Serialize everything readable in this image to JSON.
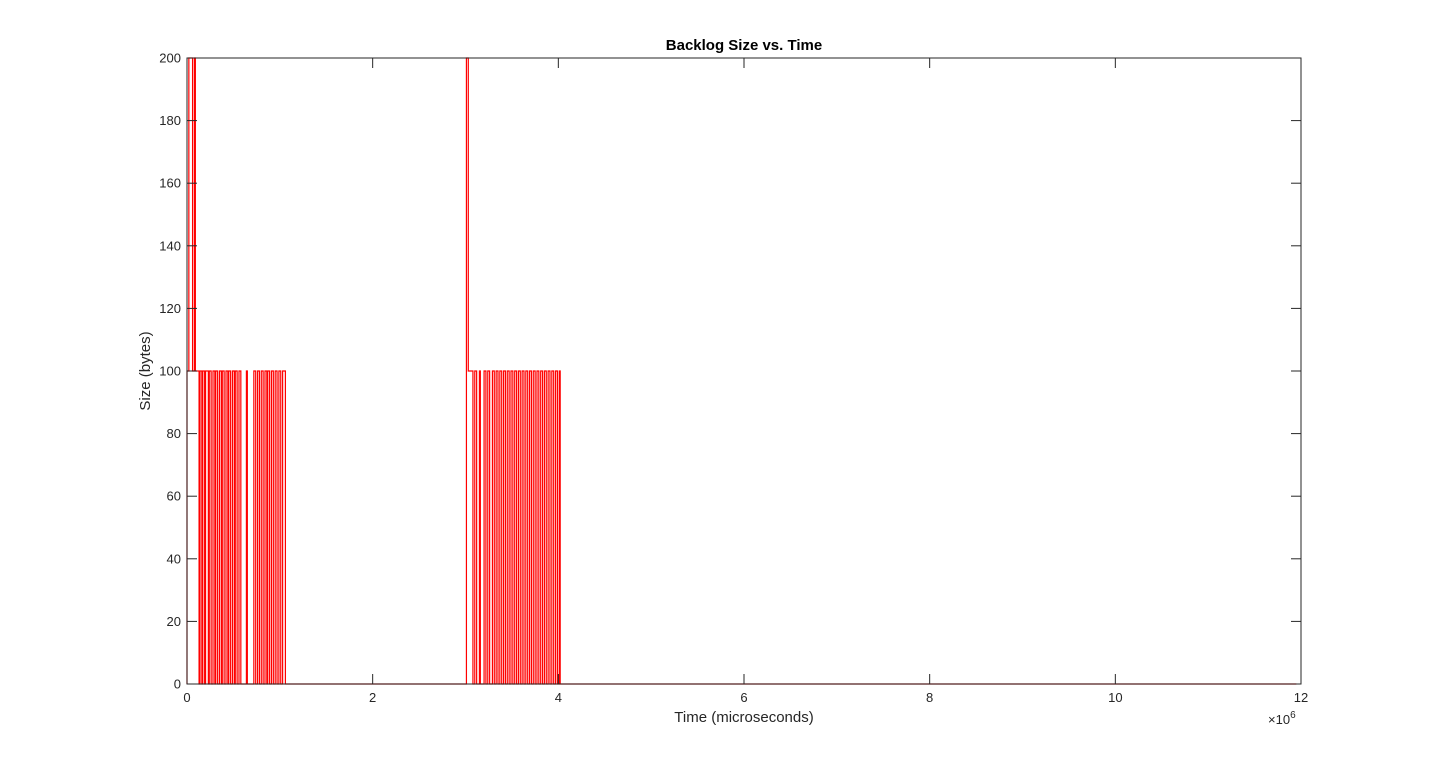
{
  "chart_data": {
    "type": "line",
    "title": "Backlog Size vs. Time",
    "xlabel": "Time (microseconds)",
    "ylabel": "Size (bytes)",
    "xlim": [
      0,
      12000000
    ],
    "ylim": [
      0,
      200
    ],
    "x_ticks": [
      0,
      2000000,
      4000000,
      6000000,
      8000000,
      10000000,
      12000000
    ],
    "x_tick_labels": [
      "0",
      "2",
      "4",
      "6",
      "8",
      "10",
      "12"
    ],
    "x_exponent_base": "×10",
    "x_exponent_power": "6",
    "y_ticks": [
      0,
      20,
      40,
      60,
      80,
      100,
      120,
      140,
      160,
      180,
      200
    ],
    "y_tick_labels": [
      "0",
      "20",
      "40",
      "60",
      "80",
      "100",
      "120",
      "140",
      "160",
      "180",
      "200"
    ],
    "grid": false,
    "series": [
      {
        "color": "#ff0000",
        "points": [
          [
            0,
            0
          ],
          [
            0,
            100
          ],
          [
            20000,
            100
          ],
          [
            20000,
            200
          ],
          [
            60000,
            200
          ],
          [
            60000,
            100
          ],
          [
            80000,
            100
          ],
          [
            80000,
            200
          ],
          [
            90000,
            200
          ],
          [
            90000,
            100
          ],
          [
            130000,
            100
          ],
          [
            130000,
            0
          ],
          [
            140000,
            0
          ],
          [
            140000,
            100
          ],
          [
            160000,
            100
          ],
          [
            160000,
            0
          ],
          [
            170000,
            0
          ],
          [
            170000,
            100
          ],
          [
            190000,
            100
          ],
          [
            190000,
            0
          ],
          [
            200000,
            0
          ],
          [
            200000,
            100
          ],
          [
            230000,
            100
          ],
          [
            230000,
            0
          ],
          [
            240000,
            0
          ],
          [
            240000,
            100
          ],
          [
            260000,
            100
          ],
          [
            260000,
            0
          ],
          [
            280000,
            0
          ],
          [
            280000,
            100
          ],
          [
            300000,
            100
          ],
          [
            300000,
            0
          ],
          [
            310000,
            0
          ],
          [
            310000,
            100
          ],
          [
            330000,
            100
          ],
          [
            330000,
            0
          ],
          [
            350000,
            0
          ],
          [
            350000,
            100
          ],
          [
            370000,
            100
          ],
          [
            370000,
            0
          ],
          [
            380000,
            0
          ],
          [
            380000,
            100
          ],
          [
            400000,
            100
          ],
          [
            400000,
            0
          ],
          [
            420000,
            0
          ],
          [
            420000,
            100
          ],
          [
            440000,
            100
          ],
          [
            440000,
            0
          ],
          [
            450000,
            0
          ],
          [
            450000,
            100
          ],
          [
            470000,
            100
          ],
          [
            470000,
            0
          ],
          [
            490000,
            0
          ],
          [
            490000,
            100
          ],
          [
            510000,
            100
          ],
          [
            510000,
            0
          ],
          [
            520000,
            0
          ],
          [
            520000,
            100
          ],
          [
            540000,
            100
          ],
          [
            540000,
            0
          ],
          [
            560000,
            0
          ],
          [
            560000,
            100
          ],
          [
            580000,
            100
          ],
          [
            580000,
            0
          ],
          [
            640000,
            0
          ],
          [
            640000,
            100
          ],
          [
            650000,
            100
          ],
          [
            650000,
            0
          ],
          [
            720000,
            0
          ],
          [
            720000,
            100
          ],
          [
            740000,
            100
          ],
          [
            740000,
            0
          ],
          [
            760000,
            0
          ],
          [
            760000,
            100
          ],
          [
            780000,
            100
          ],
          [
            780000,
            0
          ],
          [
            800000,
            0
          ],
          [
            800000,
            100
          ],
          [
            820000,
            100
          ],
          [
            820000,
            0
          ],
          [
            840000,
            0
          ],
          [
            840000,
            100
          ],
          [
            860000,
            100
          ],
          [
            860000,
            0
          ],
          [
            870000,
            0
          ],
          [
            870000,
            100
          ],
          [
            890000,
            100
          ],
          [
            890000,
            0
          ],
          [
            910000,
            0
          ],
          [
            910000,
            100
          ],
          [
            930000,
            100
          ],
          [
            930000,
            0
          ],
          [
            950000,
            0
          ],
          [
            950000,
            100
          ],
          [
            970000,
            100
          ],
          [
            970000,
            0
          ],
          [
            990000,
            0
          ],
          [
            990000,
            100
          ],
          [
            1010000,
            100
          ],
          [
            1010000,
            0
          ],
          [
            1030000,
            0
          ],
          [
            1030000,
            100
          ],
          [
            1060000,
            100
          ],
          [
            1060000,
            0
          ],
          [
            3010000,
            0
          ],
          [
            3010000,
            200
          ],
          [
            3030000,
            200
          ],
          [
            3030000,
            100
          ],
          [
            3080000,
            100
          ],
          [
            3080000,
            0
          ],
          [
            3100000,
            0
          ],
          [
            3100000,
            100
          ],
          [
            3120000,
            100
          ],
          [
            3120000,
            0
          ],
          [
            3150000,
            0
          ],
          [
            3150000,
            100
          ],
          [
            3160000,
            100
          ],
          [
            3160000,
            0
          ],
          [
            3200000,
            0
          ],
          [
            3200000,
            100
          ],
          [
            3220000,
            100
          ],
          [
            3220000,
            0
          ],
          [
            3240000,
            0
          ],
          [
            3240000,
            100
          ],
          [
            3260000,
            100
          ],
          [
            3260000,
            0
          ],
          [
            3290000,
            0
          ],
          [
            3290000,
            100
          ],
          [
            3310000,
            100
          ],
          [
            3310000,
            0
          ],
          [
            3330000,
            0
          ],
          [
            3330000,
            100
          ],
          [
            3350000,
            100
          ],
          [
            3350000,
            0
          ],
          [
            3370000,
            0
          ],
          [
            3370000,
            100
          ],
          [
            3390000,
            100
          ],
          [
            3390000,
            0
          ],
          [
            3410000,
            0
          ],
          [
            3410000,
            100
          ],
          [
            3430000,
            100
          ],
          [
            3430000,
            0
          ],
          [
            3450000,
            0
          ],
          [
            3450000,
            100
          ],
          [
            3470000,
            100
          ],
          [
            3470000,
            0
          ],
          [
            3490000,
            0
          ],
          [
            3490000,
            100
          ],
          [
            3510000,
            100
          ],
          [
            3510000,
            0
          ],
          [
            3530000,
            0
          ],
          [
            3530000,
            100
          ],
          [
            3550000,
            100
          ],
          [
            3550000,
            0
          ],
          [
            3570000,
            0
          ],
          [
            3570000,
            100
          ],
          [
            3590000,
            100
          ],
          [
            3590000,
            0
          ],
          [
            3610000,
            0
          ],
          [
            3610000,
            100
          ],
          [
            3630000,
            100
          ],
          [
            3630000,
            0
          ],
          [
            3650000,
            0
          ],
          [
            3650000,
            100
          ],
          [
            3670000,
            100
          ],
          [
            3670000,
            0
          ],
          [
            3690000,
            0
          ],
          [
            3690000,
            100
          ],
          [
            3710000,
            100
          ],
          [
            3710000,
            0
          ],
          [
            3730000,
            0
          ],
          [
            3730000,
            100
          ],
          [
            3750000,
            100
          ],
          [
            3750000,
            0
          ],
          [
            3770000,
            0
          ],
          [
            3770000,
            100
          ],
          [
            3790000,
            100
          ],
          [
            3790000,
            0
          ],
          [
            3810000,
            0
          ],
          [
            3810000,
            100
          ],
          [
            3830000,
            100
          ],
          [
            3830000,
            0
          ],
          [
            3850000,
            0
          ],
          [
            3850000,
            100
          ],
          [
            3870000,
            100
          ],
          [
            3870000,
            0
          ],
          [
            3890000,
            0
          ],
          [
            3890000,
            100
          ],
          [
            3910000,
            100
          ],
          [
            3910000,
            0
          ],
          [
            3930000,
            0
          ],
          [
            3930000,
            100
          ],
          [
            3950000,
            100
          ],
          [
            3950000,
            0
          ],
          [
            3970000,
            0
          ],
          [
            3970000,
            100
          ],
          [
            3990000,
            100
          ],
          [
            3990000,
            0
          ],
          [
            4010000,
            0
          ],
          [
            4010000,
            100
          ],
          [
            4020000,
            100
          ],
          [
            4020000,
            0
          ],
          [
            11950000,
            0
          ]
        ]
      }
    ]
  }
}
